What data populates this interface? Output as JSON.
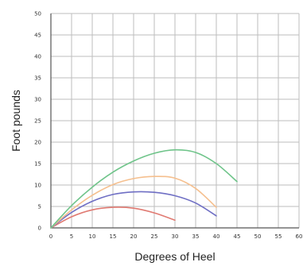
{
  "chart_data": {
    "type": "line",
    "title": "",
    "xlabel": "Degrees of Heel",
    "ylabel": "Foot pounds",
    "xlim": [
      0,
      60
    ],
    "ylim": [
      0,
      50
    ],
    "xticks": [
      0,
      5,
      10,
      15,
      20,
      25,
      30,
      35,
      40,
      45,
      50,
      55,
      60
    ],
    "yticks": [
      0,
      5,
      10,
      15,
      20,
      25,
      30,
      35,
      40,
      45,
      50
    ],
    "grid": true,
    "legend": "none",
    "series": [
      {
        "color": "#e07a72",
        "x": [
          0,
          5,
          10,
          15,
          20,
          25,
          30
        ],
        "y": [
          0,
          2.6,
          4.2,
          4.8,
          4.6,
          3.5,
          1.8
        ]
      },
      {
        "color": "#6f6fc4",
        "x": [
          0,
          5,
          10,
          15,
          20,
          25,
          30,
          35,
          40
        ],
        "y": [
          0,
          3.6,
          6.2,
          7.8,
          8.4,
          8.3,
          7.5,
          5.8,
          2.8
        ]
      },
      {
        "color": "#f5bf8e",
        "x": [
          0,
          5,
          10,
          15,
          20,
          25,
          30,
          35,
          40
        ],
        "y": [
          0,
          4.2,
          7.6,
          10.1,
          11.5,
          12.0,
          11.6,
          9.2,
          4.8
        ]
      },
      {
        "color": "#6fc48a",
        "x": [
          0,
          5,
          10,
          15,
          20,
          25,
          30,
          35,
          40,
          45
        ],
        "y": [
          0,
          5.2,
          9.5,
          13.0,
          15.6,
          17.4,
          18.2,
          17.6,
          15.0,
          10.8
        ]
      }
    ]
  }
}
